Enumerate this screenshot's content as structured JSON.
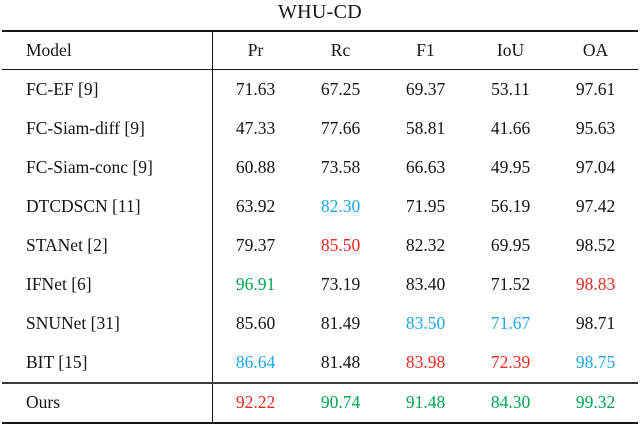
{
  "title": "WHU-CD",
  "colors": {
    "black": "#141414",
    "red": "#ea2a22",
    "green": "#00a651",
    "blue": "#1ea8e8"
  },
  "table": {
    "columns": [
      "Model",
      "Pr",
      "Rc",
      "F1",
      "IoU",
      "OA"
    ],
    "rows": [
      {
        "model": "FC-EF [9]",
        "values": [
          {
            "text": "71.63",
            "color": "black"
          },
          {
            "text": "67.25",
            "color": "black"
          },
          {
            "text": "69.37",
            "color": "black"
          },
          {
            "text": "53.11",
            "color": "black"
          },
          {
            "text": "97.61",
            "color": "black"
          }
        ]
      },
      {
        "model": "FC-Siam-diff [9]",
        "values": [
          {
            "text": "47.33",
            "color": "black"
          },
          {
            "text": "77.66",
            "color": "black"
          },
          {
            "text": "58.81",
            "color": "black"
          },
          {
            "text": "41.66",
            "color": "black"
          },
          {
            "text": "95.63",
            "color": "black"
          }
        ]
      },
      {
        "model": "FC-Siam-conc [9]",
        "values": [
          {
            "text": "60.88",
            "color": "black"
          },
          {
            "text": "73.58",
            "color": "black"
          },
          {
            "text": "66.63",
            "color": "black"
          },
          {
            "text": "49.95",
            "color": "black"
          },
          {
            "text": "97.04",
            "color": "black"
          }
        ]
      },
      {
        "model": "DTCDSCN [11]",
        "values": [
          {
            "text": "63.92",
            "color": "black"
          },
          {
            "text": "82.30",
            "color": "blue"
          },
          {
            "text": "71.95",
            "color": "black"
          },
          {
            "text": "56.19",
            "color": "black"
          },
          {
            "text": "97.42",
            "color": "black"
          }
        ]
      },
      {
        "model": "STANet [2]",
        "values": [
          {
            "text": "79.37",
            "color": "black"
          },
          {
            "text": "85.50",
            "color": "red"
          },
          {
            "text": "82.32",
            "color": "black"
          },
          {
            "text": "69.95",
            "color": "black"
          },
          {
            "text": "98.52",
            "color": "black"
          }
        ]
      },
      {
        "model": "IFNet [6]",
        "values": [
          {
            "text": "96.91",
            "color": "green"
          },
          {
            "text": "73.19",
            "color": "black"
          },
          {
            "text": "83.40",
            "color": "black"
          },
          {
            "text": "71.52",
            "color": "black"
          },
          {
            "text": "98.83",
            "color": "red"
          }
        ]
      },
      {
        "model": "SNUNet [31]",
        "values": [
          {
            "text": "85.60",
            "color": "black"
          },
          {
            "text": "81.49",
            "color": "black"
          },
          {
            "text": "83.50",
            "color": "blue"
          },
          {
            "text": "71.67",
            "color": "blue"
          },
          {
            "text": "98.71",
            "color": "black"
          }
        ]
      },
      {
        "model": "BIT [15]",
        "values": [
          {
            "text": "86.64",
            "color": "blue"
          },
          {
            "text": "81.48",
            "color": "black"
          },
          {
            "text": "83.98",
            "color": "red"
          },
          {
            "text": "72.39",
            "color": "red"
          },
          {
            "text": "98.75",
            "color": "blue"
          }
        ]
      },
      {
        "model": "Ours",
        "values": [
          {
            "text": "92.22",
            "color": "red"
          },
          {
            "text": "90.74",
            "color": "green"
          },
          {
            "text": "91.48",
            "color": "green"
          },
          {
            "text": "84.30",
            "color": "green"
          },
          {
            "text": "99.32",
            "color": "green"
          }
        ]
      }
    ]
  }
}
